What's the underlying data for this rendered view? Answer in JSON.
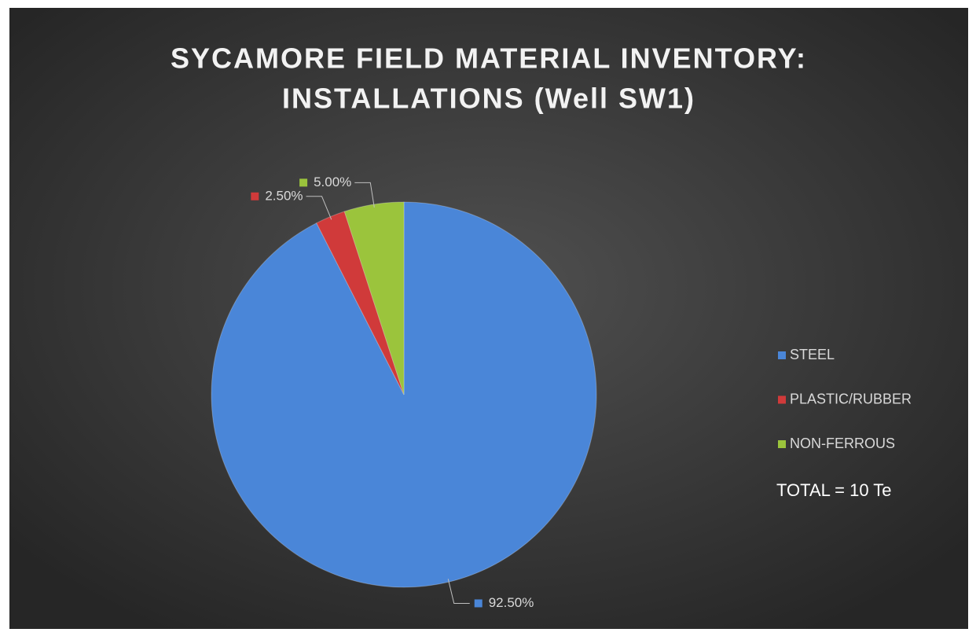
{
  "chart_data": {
    "type": "pie",
    "title": [
      "SYCAMORE FIELD MATERIAL INVENTORY:",
      "INSTALLATIONS (Well SW1)"
    ],
    "categories": [
      "STEEL",
      "PLASTIC/RUBBER",
      "NON-FERROUS"
    ],
    "values": [
      92.5,
      2.5,
      5
    ],
    "value_labels": [
      "92.50%",
      "2.50%",
      "5.00%"
    ],
    "colors": [
      "#4a86d8",
      "#d03a3a",
      "#9bc43c"
    ],
    "legend": "right",
    "annotation": "TOTAL = 10 Te"
  }
}
